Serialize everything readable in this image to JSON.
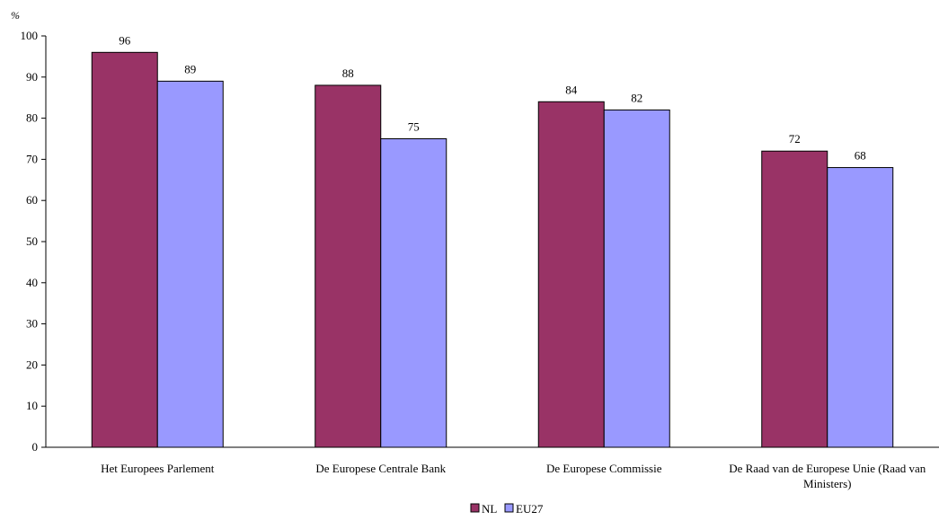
{
  "chart_data": {
    "type": "bar",
    "ylabel": "%",
    "ylim": [
      0,
      100
    ],
    "yticks": [
      0,
      10,
      20,
      30,
      40,
      50,
      60,
      70,
      80,
      90,
      100
    ],
    "grid": false,
    "legend_position": "bottom",
    "categories": [
      "Het Europees Parlement",
      "De Europese Centrale Bank",
      "De Europese Commissie",
      "De Raad van de Europese Unie (Raad van Ministers)"
    ],
    "series": [
      {
        "name": "NL",
        "color": "#993366",
        "values": [
          96,
          88,
          84,
          72
        ]
      },
      {
        "name": "EU27",
        "color": "#9999FF",
        "values": [
          89,
          75,
          82,
          68
        ]
      }
    ]
  }
}
